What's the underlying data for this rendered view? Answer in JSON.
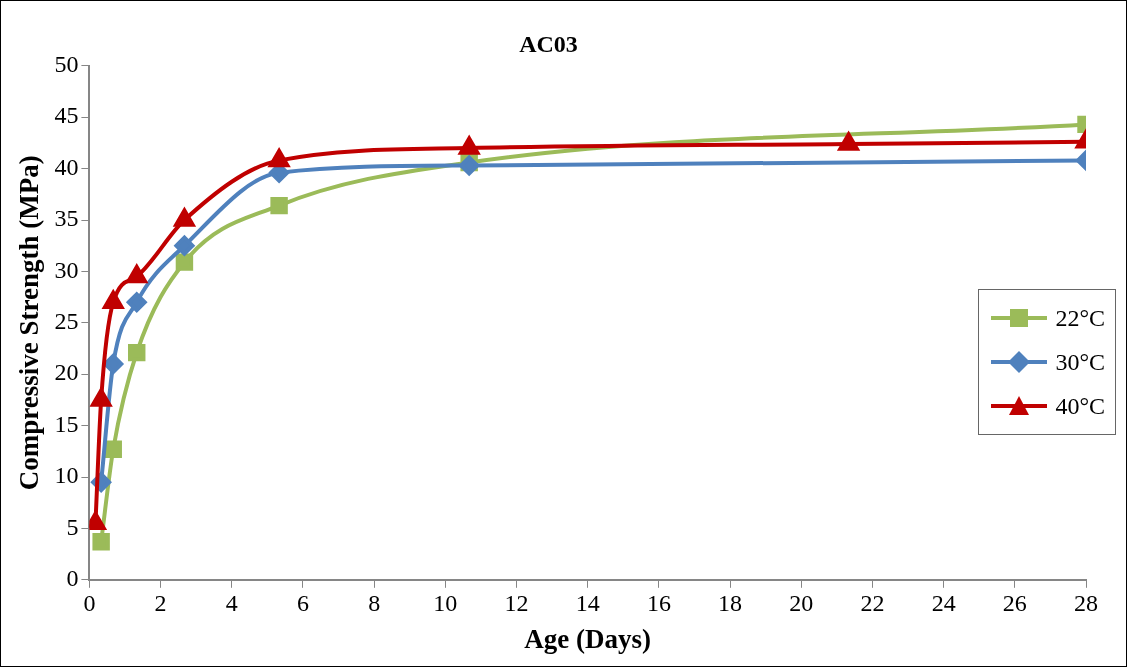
{
  "chart_data": {
    "type": "line",
    "title": "AC03",
    "xlabel": "Age (Days)",
    "ylabel": "Compressive Strength (MPa)",
    "series": [
      {
        "name": "22°C",
        "color": "#9bbb59",
        "marker": "square",
        "x": [
          0.33,
          0.67,
          1.33,
          2.67,
          5.33,
          10.67,
          28
        ],
        "values": [
          3.7,
          12.7,
          22.1,
          30.9,
          36.4,
          40.6,
          44.3
        ]
      },
      {
        "name": "30°C",
        "color": "#4f81bd",
        "marker": "diamond",
        "x": [
          0.33,
          0.67,
          1.33,
          2.67,
          5.33,
          10.67,
          28
        ],
        "values": [
          9.5,
          21.0,
          27.0,
          32.5,
          39.6,
          40.3,
          40.8
        ]
      },
      {
        "name": "40°C",
        "color": "#c00000",
        "marker": "triangle",
        "x": [
          0.17,
          0.33,
          0.67,
          1.33,
          2.67,
          5.33,
          10.67,
          21.33,
          28
        ],
        "values": [
          5.5,
          17.5,
          27.0,
          29.5,
          35.0,
          40.8,
          42.0,
          42.4,
          42.6
        ]
      }
    ],
    "xlim": [
      0,
      28
    ],
    "xticks": [
      0,
      2,
      4,
      6,
      8,
      10,
      12,
      14,
      16,
      18,
      20,
      22,
      24,
      26,
      28
    ],
    "ylim": [
      0,
      50
    ],
    "yticks": [
      0,
      5,
      10,
      15,
      20,
      25,
      30,
      35,
      40,
      45,
      50
    ],
    "grid": false,
    "legend": "right",
    "line_style": "solid"
  }
}
